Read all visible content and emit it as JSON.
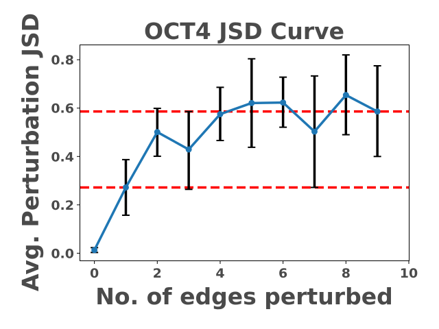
{
  "chart_data": {
    "type": "line",
    "title": "OCT4 JSD Curve",
    "xlabel": "No. of edges perturbed",
    "ylabel": "Avg. Perturbation JSD",
    "xlim": [
      -0.45,
      10
    ],
    "ylim": [
      -0.03,
      0.86
    ],
    "xticks": [
      0,
      2,
      4,
      6,
      8,
      10
    ],
    "yticks": [
      0.0,
      0.2,
      0.4,
      0.6,
      0.8
    ],
    "xtick_labels": [
      "0",
      "2",
      "4",
      "6",
      "8",
      "10"
    ],
    "ytick_labels": [
      "0.0",
      "0.2",
      "0.4",
      "0.6",
      "0.8"
    ],
    "grid": false,
    "legend": false,
    "series": [
      {
        "x": [
          0,
          1,
          2,
          3,
          4,
          5,
          6,
          7,
          8,
          9
        ],
        "y": [
          0.013,
          0.272,
          0.501,
          0.429,
          0.575,
          0.621,
          0.623,
          0.503,
          0.654,
          0.586
        ],
        "yerr_low": [
          0.003,
          0.157,
          0.401,
          0.264,
          0.466,
          0.438,
          0.521,
          0.272,
          0.49,
          0.4
        ],
        "yerr_high": [
          0.023,
          0.387,
          0.599,
          0.586,
          0.686,
          0.804,
          0.728,
          0.733,
          0.82,
          0.775
        ],
        "color": "#1f77b4",
        "errorbar_color": "#000000"
      }
    ],
    "hlines": [
      {
        "y": 0.586,
        "color": "#ff0000",
        "style": "dashed"
      },
      {
        "y": 0.272,
        "color": "#ff0000",
        "style": "dashed"
      }
    ]
  }
}
